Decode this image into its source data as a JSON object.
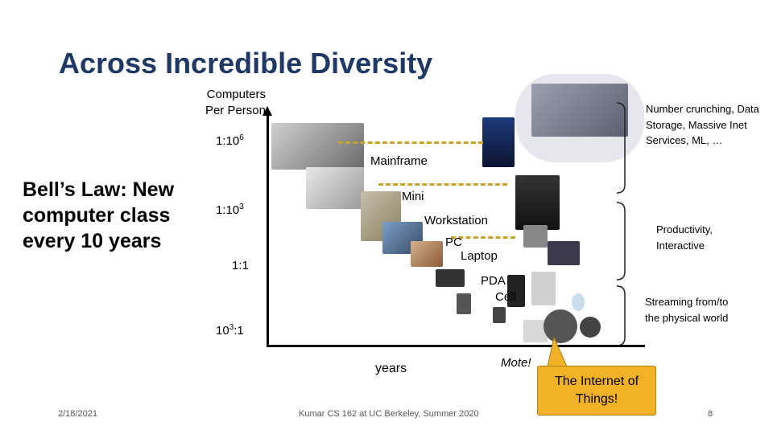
{
  "slide": {
    "title": "Across Incredible Diversity",
    "bell_text": "Bell’s Law: New computer class every 10 years",
    "y_axis_label_line1": "Computers",
    "y_axis_label_line2": "Per Person",
    "x_axis_label": "years",
    "ticks": [
      {
        "base": "1:10",
        "exp": "6"
      },
      {
        "base": "1:10",
        "exp": "3"
      },
      {
        "base": "1:1",
        "exp": ""
      },
      {
        "base": "10",
        "exp": "3",
        "suffix": ":1"
      }
    ],
    "classes": {
      "mainframe": "Mainframe",
      "mini": "Mini",
      "workstation": "Workstation",
      "pc": "PC",
      "laptop": "Laptop",
      "pda": "PDA",
      "cell": "Cell",
      "mote": "Mote!"
    },
    "notes": {
      "number_crunching": "Number crunching, Data Storage, Massive Inet Services, ML, …",
      "productivity": "Productivity, Interactive",
      "streaming": "Streaming from/to the physical world"
    },
    "callout": "The Internet of Things!",
    "footer": {
      "date": "2/18/2021",
      "course": "Kumar CS 162 at UC Berkeley, Summer 2020",
      "page": "8"
    },
    "colors": {
      "title": "#1F3864",
      "callout_bg": "#F2B227",
      "dashes": "#C9A227"
    }
  }
}
